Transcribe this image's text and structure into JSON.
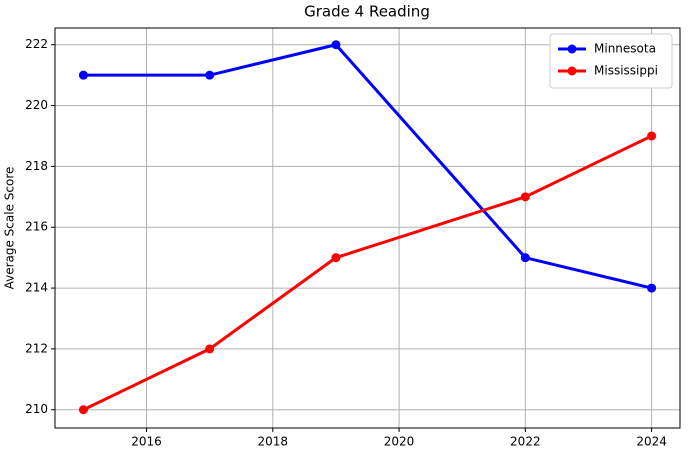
{
  "chart_data": {
    "type": "line",
    "title": "Grade 4 Reading",
    "y_label": "Average Scale Score",
    "x": [
      2015,
      2017,
      2019,
      2022,
      2024
    ],
    "series": [
      {
        "name": "Minnesota",
        "color": "#0000ff",
        "values": [
          221,
          221,
          222,
          215,
          214
        ]
      },
      {
        "name": "Mississippi",
        "color": "#ff0000",
        "values": [
          210,
          212,
          215,
          217,
          219
        ]
      }
    ],
    "xlim": [
      2014.55,
      2024.45
    ],
    "xticks": [
      2016,
      2018,
      2020,
      2022,
      2024
    ],
    "ylim": [
      209.4,
      222.55
    ],
    "yticks": [
      210,
      212,
      214,
      216,
      218,
      220,
      222
    ],
    "grid": true,
    "legend": "upper-right"
  }
}
